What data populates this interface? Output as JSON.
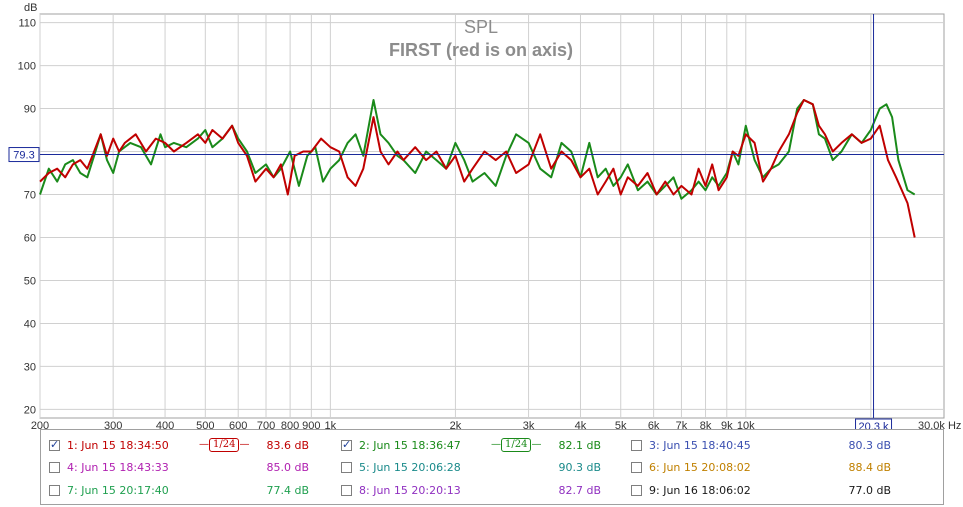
{
  "chart_data": {
    "type": "line",
    "title": "SPL",
    "subtitle": "FIRST (red is on axis)",
    "ylabel": "dB",
    "x_unit": "Hz",
    "xscale": "log",
    "xlim": [
      200,
      30000
    ],
    "ylim": [
      18,
      112
    ],
    "grid": true,
    "y_ticks": [
      20,
      30,
      40,
      50,
      60,
      70,
      80,
      90,
      100,
      110
    ],
    "x_ticks": [
      {
        "v": 200,
        "label": "200"
      },
      {
        "v": 300,
        "label": "300"
      },
      {
        "v": 400,
        "label": "400"
      },
      {
        "v": 500,
        "label": "500"
      },
      {
        "v": 600,
        "label": "600"
      },
      {
        "v": 700,
        "label": "700"
      },
      {
        "v": 800,
        "label": "800"
      },
      {
        "v": 900,
        "label": "900"
      },
      {
        "v": 1000,
        "label": "1k"
      },
      {
        "v": 2000,
        "label": "2k"
      },
      {
        "v": 3000,
        "label": "3k"
      },
      {
        "v": 4000,
        "label": "4k"
      },
      {
        "v": 5000,
        "label": "5k"
      },
      {
        "v": 6000,
        "label": "6k"
      },
      {
        "v": 7000,
        "label": "7k"
      },
      {
        "v": 8000,
        "label": "8k"
      },
      {
        "v": 9000,
        "label": "9k"
      },
      {
        "v": 10000,
        "label": "10k"
      }
    ],
    "x_end_label": "30.0k Hz",
    "cursor": {
      "x": 20300,
      "y": 79.3,
      "x_label": "20.3 k",
      "y_label": "79.3"
    },
    "series": [
      {
        "color": "#c00000",
        "points": [
          [
            200,
            73
          ],
          [
            210,
            75
          ],
          [
            220,
            76
          ],
          [
            230,
            74
          ],
          [
            240,
            77
          ],
          [
            250,
            78
          ],
          [
            260,
            76
          ],
          [
            270,
            80
          ],
          [
            280,
            84
          ],
          [
            290,
            79
          ],
          [
            300,
            83
          ],
          [
            310,
            80
          ],
          [
            320,
            82
          ],
          [
            340,
            84
          ],
          [
            360,
            80
          ],
          [
            380,
            83
          ],
          [
            400,
            82
          ],
          [
            420,
            80
          ],
          [
            450,
            82
          ],
          [
            480,
            84
          ],
          [
            500,
            82
          ],
          [
            520,
            85
          ],
          [
            550,
            83
          ],
          [
            580,
            86
          ],
          [
            600,
            82
          ],
          [
            630,
            79
          ],
          [
            660,
            73
          ],
          [
            700,
            76
          ],
          [
            730,
            74
          ],
          [
            760,
            77
          ],
          [
            790,
            70
          ],
          [
            820,
            79
          ],
          [
            860,
            80
          ],
          [
            900,
            80
          ],
          [
            950,
            83
          ],
          [
            1000,
            81
          ],
          [
            1050,
            80
          ],
          [
            1100,
            74
          ],
          [
            1150,
            72
          ],
          [
            1200,
            76
          ],
          [
            1270,
            88
          ],
          [
            1320,
            80
          ],
          [
            1380,
            77
          ],
          [
            1450,
            80
          ],
          [
            1500,
            78
          ],
          [
            1600,
            81
          ],
          [
            1700,
            78
          ],
          [
            1800,
            80
          ],
          [
            1900,
            76
          ],
          [
            2000,
            79
          ],
          [
            2100,
            73
          ],
          [
            2200,
            76
          ],
          [
            2350,
            80
          ],
          [
            2500,
            78
          ],
          [
            2650,
            80
          ],
          [
            2800,
            75
          ],
          [
            3000,
            77
          ],
          [
            3200,
            84
          ],
          [
            3400,
            76
          ],
          [
            3600,
            80
          ],
          [
            3800,
            78
          ],
          [
            4000,
            74
          ],
          [
            4200,
            76
          ],
          [
            4400,
            70
          ],
          [
            4600,
            73
          ],
          [
            4800,
            76
          ],
          [
            5000,
            70
          ],
          [
            5200,
            74
          ],
          [
            5500,
            72
          ],
          [
            5800,
            75
          ],
          [
            6100,
            70
          ],
          [
            6400,
            73
          ],
          [
            6700,
            70
          ],
          [
            7000,
            72
          ],
          [
            7400,
            70
          ],
          [
            7700,
            76
          ],
          [
            8000,
            72
          ],
          [
            8300,
            77
          ],
          [
            8600,
            71
          ],
          [
            9000,
            74
          ],
          [
            9300,
            80
          ],
          [
            9600,
            79
          ],
          [
            10000,
            84
          ],
          [
            10500,
            82
          ],
          [
            11000,
            73
          ],
          [
            11500,
            76
          ],
          [
            12000,
            80
          ],
          [
            12700,
            84
          ],
          [
            13300,
            89
          ],
          [
            13800,
            92
          ],
          [
            14500,
            91
          ],
          [
            15000,
            86
          ],
          [
            15500,
            84
          ],
          [
            16200,
            80
          ],
          [
            17000,
            82
          ],
          [
            18000,
            84
          ],
          [
            19000,
            82
          ],
          [
            20000,
            83
          ],
          [
            21000,
            86
          ],
          [
            22000,
            78
          ],
          [
            23000,
            74
          ],
          [
            24500,
            68
          ],
          [
            25500,
            60
          ]
        ]
      },
      {
        "color": "#1a8a1a",
        "points": [
          [
            200,
            70
          ],
          [
            210,
            76
          ],
          [
            220,
            73
          ],
          [
            230,
            77
          ],
          [
            240,
            78
          ],
          [
            250,
            75
          ],
          [
            260,
            74
          ],
          [
            270,
            79
          ],
          [
            280,
            84
          ],
          [
            290,
            78
          ],
          [
            300,
            75
          ],
          [
            310,
            80
          ],
          [
            330,
            82
          ],
          [
            350,
            81
          ],
          [
            370,
            77
          ],
          [
            390,
            84
          ],
          [
            400,
            81
          ],
          [
            420,
            82
          ],
          [
            450,
            81
          ],
          [
            480,
            83
          ],
          [
            500,
            85
          ],
          [
            520,
            81
          ],
          [
            550,
            83
          ],
          [
            580,
            86
          ],
          [
            600,
            83
          ],
          [
            630,
            80
          ],
          [
            660,
            75
          ],
          [
            700,
            77
          ],
          [
            730,
            74
          ],
          [
            760,
            76
          ],
          [
            800,
            80
          ],
          [
            840,
            72
          ],
          [
            880,
            79
          ],
          [
            920,
            81
          ],
          [
            960,
            73
          ],
          [
            1000,
            76
          ],
          [
            1050,
            78
          ],
          [
            1100,
            82
          ],
          [
            1150,
            84
          ],
          [
            1200,
            79
          ],
          [
            1270,
            92
          ],
          [
            1320,
            84
          ],
          [
            1380,
            82
          ],
          [
            1450,
            79
          ],
          [
            1500,
            78
          ],
          [
            1600,
            75
          ],
          [
            1700,
            80
          ],
          [
            1800,
            78
          ],
          [
            1900,
            76
          ],
          [
            2000,
            82
          ],
          [
            2100,
            78
          ],
          [
            2200,
            73
          ],
          [
            2350,
            75
          ],
          [
            2500,
            72
          ],
          [
            2650,
            79
          ],
          [
            2800,
            84
          ],
          [
            3000,
            82
          ],
          [
            3200,
            76
          ],
          [
            3400,
            74
          ],
          [
            3600,
            82
          ],
          [
            3800,
            80
          ],
          [
            4000,
            74
          ],
          [
            4200,
            82
          ],
          [
            4400,
            74
          ],
          [
            4600,
            76
          ],
          [
            4800,
            72
          ],
          [
            5000,
            74
          ],
          [
            5200,
            77
          ],
          [
            5500,
            71
          ],
          [
            5800,
            73
          ],
          [
            6100,
            70
          ],
          [
            6400,
            72
          ],
          [
            6700,
            74
          ],
          [
            7000,
            69
          ],
          [
            7400,
            71
          ],
          [
            7700,
            73
          ],
          [
            8000,
            71
          ],
          [
            8300,
            74
          ],
          [
            8600,
            72
          ],
          [
            9000,
            75
          ],
          [
            9300,
            80
          ],
          [
            9600,
            77
          ],
          [
            10000,
            86
          ],
          [
            10500,
            78
          ],
          [
            11000,
            74
          ],
          [
            11500,
            76
          ],
          [
            12000,
            77
          ],
          [
            12700,
            80
          ],
          [
            13300,
            90
          ],
          [
            13800,
            92
          ],
          [
            14500,
            91
          ],
          [
            15000,
            84
          ],
          [
            15500,
            83
          ],
          [
            16200,
            78
          ],
          [
            17000,
            80
          ],
          [
            18000,
            84
          ],
          [
            19000,
            82
          ],
          [
            20000,
            85
          ],
          [
            21000,
            90
          ],
          [
            21800,
            91
          ],
          [
            22500,
            88
          ],
          [
            23300,
            78
          ],
          [
            24500,
            71
          ],
          [
            25500,
            70
          ]
        ]
      }
    ]
  },
  "legend": {
    "items": [
      {
        "label": "1: Jun 15 18:34:50",
        "value": "83.6 dB",
        "color": "#c00000",
        "checked": true,
        "smoothing": "1/24"
      },
      {
        "label": "2: Jun 15 18:36:47",
        "value": "82.1 dB",
        "color": "#1a8a1a",
        "checked": true,
        "smoothing": "1/24"
      },
      {
        "label": "3: Jun 15 18:40:45",
        "value": "80.3 dB",
        "color": "#3a4fb0",
        "checked": false
      },
      {
        "label": "4: Jun 15 18:43:33",
        "value": "85.0 dB",
        "color": "#b020b0",
        "checked": false
      },
      {
        "label": "5: Jun 15 20:06:28",
        "value": "90.3 dB",
        "color": "#1a8a8a",
        "checked": false
      },
      {
        "label": "6: Jun 15 20:08:02",
        "value": "88.4 dB",
        "color": "#c08000",
        "checked": false
      },
      {
        "label": "7: Jun 15 20:17:40",
        "value": "77.4 dB",
        "color": "#20a050",
        "checked": false
      },
      {
        "label": "8: Jun 15 20:20:13",
        "value": "82.7 dB",
        "color": "#9030c0",
        "checked": false
      },
      {
        "label": "9: Jun 16 18:06:02",
        "value": "77.0 dB",
        "color": "#1a1a1a",
        "checked": false
      }
    ]
  }
}
